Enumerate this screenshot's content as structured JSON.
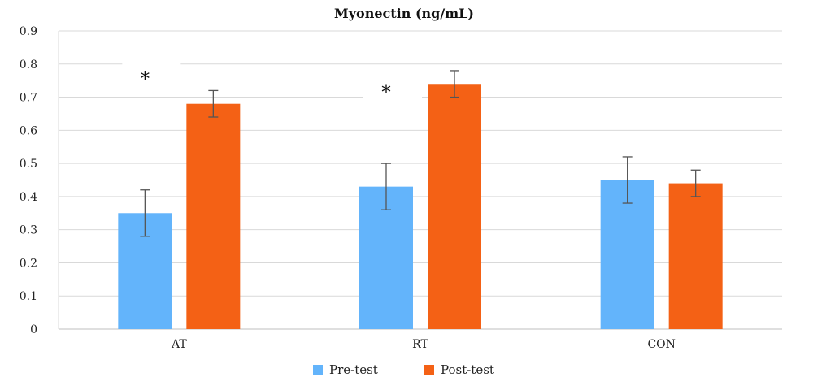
{
  "chart_data": {
    "type": "bar",
    "title": "Myonectin (ng/mL)",
    "categories": [
      "AT",
      "RT",
      "CON"
    ],
    "series": [
      {
        "name": "Pre-test",
        "values": [
          0.35,
          0.43,
          0.45
        ],
        "errors": [
          0.07,
          0.07,
          0.07
        ],
        "color": "#63b4fb"
      },
      {
        "name": "Post-test",
        "values": [
          0.68,
          0.74,
          0.44
        ],
        "errors": [
          0.04,
          0.04,
          0.04
        ],
        "color": "#f46115"
      }
    ],
    "ylim": [
      0,
      0.9
    ],
    "yticks": [
      "0",
      "0.1",
      "0.2",
      "0.3",
      "0.4",
      "0.5",
      "0.6",
      "0.7",
      "0.8",
      "0.9"
    ],
    "grid": true,
    "legend_position": "bottom",
    "annotations": [
      {
        "text": "*",
        "category": "AT",
        "y": 0.77
      },
      {
        "text": "*",
        "category": "RT",
        "y": 0.73
      }
    ]
  }
}
